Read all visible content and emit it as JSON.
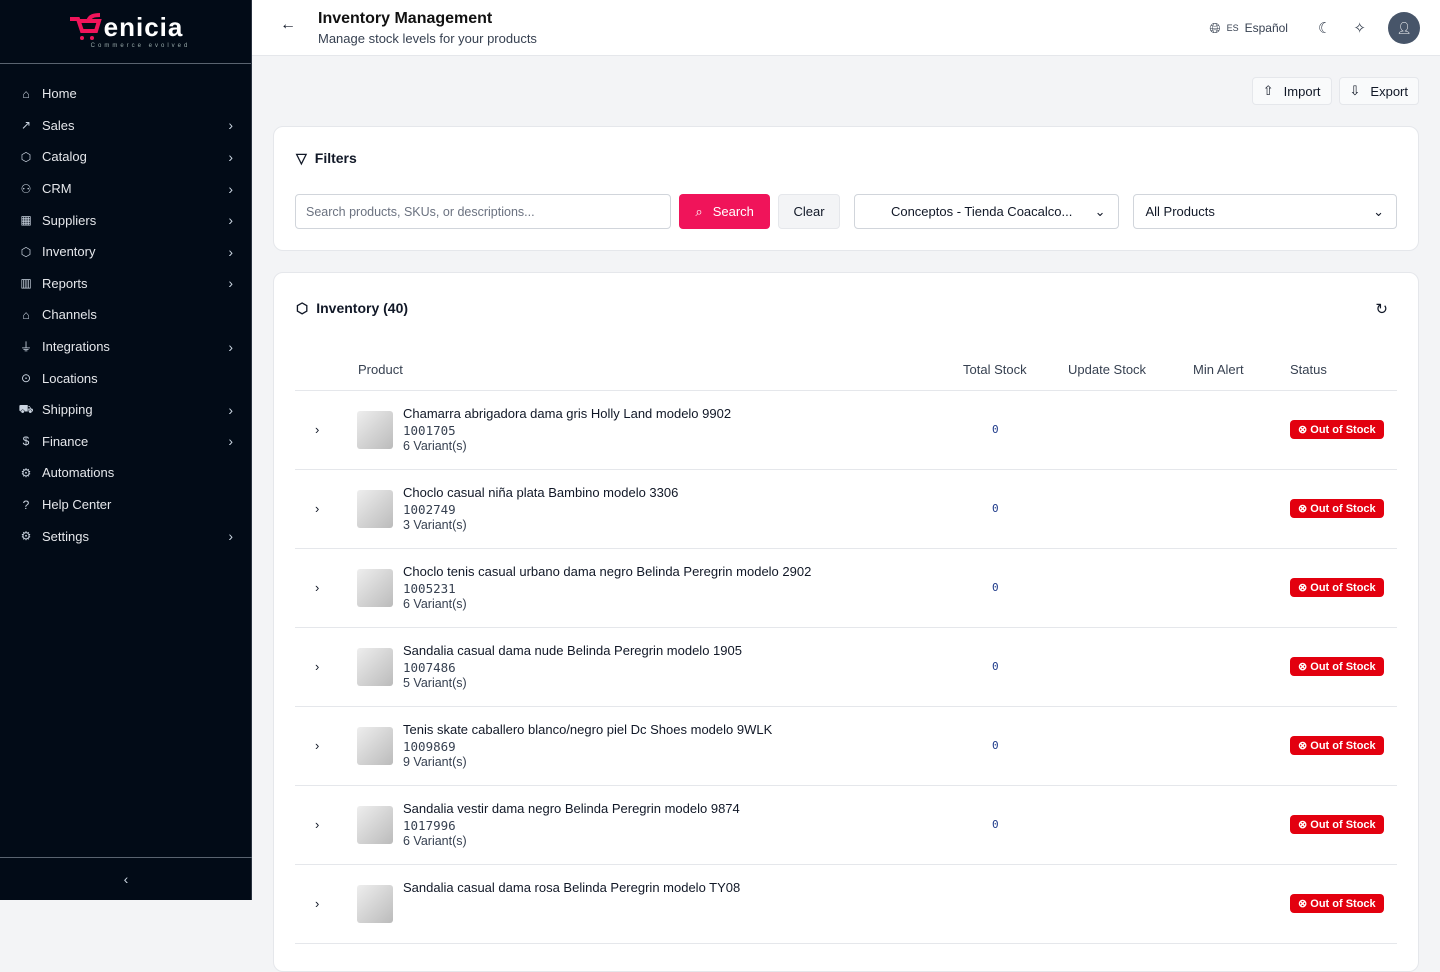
{
  "brand": {
    "name": "enicia",
    "tagline": "Commerce evolved",
    "accent": "#f0145a"
  },
  "sidebar": {
    "items": [
      {
        "label": "Home",
        "icon": "home-icon",
        "chev": false
      },
      {
        "label": "Sales",
        "icon": "trending-up-icon",
        "chev": true
      },
      {
        "label": "Catalog",
        "icon": "package-icon",
        "chev": true
      },
      {
        "label": "CRM",
        "icon": "users-icon",
        "chev": true
      },
      {
        "label": "Suppliers",
        "icon": "building-icon",
        "chev": true
      },
      {
        "label": "Inventory",
        "icon": "box-icon",
        "chev": true
      },
      {
        "label": "Reports",
        "icon": "bar-chart-icon",
        "chev": true
      },
      {
        "label": "Channels",
        "icon": "store-icon",
        "chev": false
      },
      {
        "label": "Integrations",
        "icon": "plug-icon",
        "chev": true
      },
      {
        "label": "Locations",
        "icon": "map-pin-icon",
        "chev": false
      },
      {
        "label": "Shipping",
        "icon": "truck-icon",
        "chev": true
      },
      {
        "label": "Finance",
        "icon": "dollar-icon",
        "chev": true
      },
      {
        "label": "Automations",
        "icon": "bot-icon",
        "chev": false
      },
      {
        "label": "Help Center",
        "icon": "help-icon",
        "chev": false
      },
      {
        "label": "Settings",
        "icon": "gear-icon",
        "chev": true
      }
    ]
  },
  "header": {
    "title": "Inventory Management",
    "subtitle": "Manage stock levels for your products",
    "lang_code": "ES",
    "lang": "Español"
  },
  "actions": {
    "import": "Import",
    "export": "Export"
  },
  "filters": {
    "title": "Filters",
    "placeholder": "Search products, SKUs, or descriptions...",
    "search": "Search",
    "clear": "Clear",
    "store": "Conceptos - Tienda Coacalco...",
    "products": "All Products"
  },
  "inventory": {
    "title": "Inventory (40)",
    "columns": [
      "Product",
      "Total Stock",
      "Update Stock",
      "Min Alert",
      "Status"
    ],
    "rows": [
      {
        "name": "Chamarra abrigadora dama gris Holly Land modelo 9902",
        "sku": "1001705",
        "variants": "6 Variant(s)",
        "stock": "0",
        "status": "Out of Stock"
      },
      {
        "name": "Choclo casual niña plata Bambino modelo 3306",
        "sku": "1002749",
        "variants": "3 Variant(s)",
        "stock": "0",
        "status": "Out of Stock"
      },
      {
        "name": "Choclo tenis casual urbano dama negro Belinda Peregrin modelo 2902",
        "sku": "1005231",
        "variants": "6 Variant(s)",
        "stock": "0",
        "status": "Out of Stock"
      },
      {
        "name": "Sandalia casual dama nude Belinda Peregrin modelo 1905",
        "sku": "1007486",
        "variants": "5 Variant(s)",
        "stock": "0",
        "status": "Out of Stock"
      },
      {
        "name": "Tenis skate caballero blanco/negro piel Dc Shoes modelo 9WLK",
        "sku": "1009869",
        "variants": "9 Variant(s)",
        "stock": "0",
        "status": "Out of Stock"
      },
      {
        "name": "Sandalia vestir dama negro Belinda Peregrin modelo 9874",
        "sku": "1017996",
        "variants": "6 Variant(s)",
        "stock": "0",
        "status": "Out of Stock"
      },
      {
        "name": "Sandalia casual dama rosa Belinda Peregrin modelo TY08",
        "sku": "",
        "variants": "",
        "stock": "",
        "status": "Out of Stock"
      }
    ]
  }
}
